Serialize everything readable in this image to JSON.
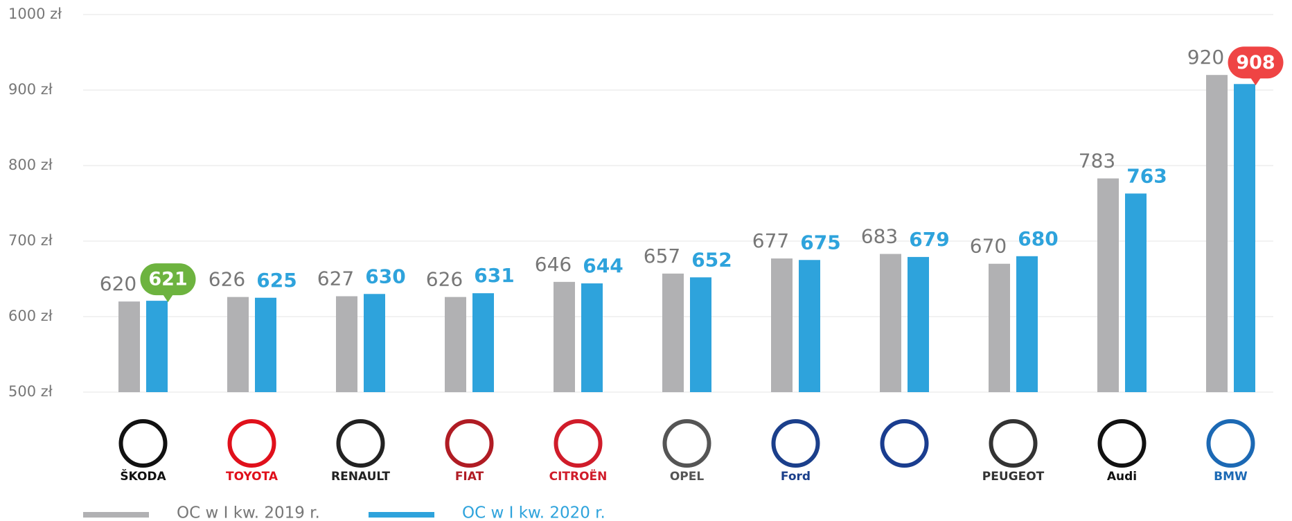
{
  "chart_data": {
    "type": "bar",
    "categories": [
      "ŠKODA",
      "TOYOTA",
      "RENAULT",
      "FIAT",
      "CITROËN",
      "OPEL",
      "Ford",
      null,
      "PEUGEOT",
      "Audi",
      "BMW"
    ],
    "category_colors": [
      "#111111",
      "#e0101b",
      "#222222",
      "#b01c24",
      "#d01c2a",
      "#555555",
      "#1b3f8b",
      "#1a3d8f",
      "#333333",
      "#111111",
      "#1c69b4"
    ],
    "series": [
      {
        "name": "OC w I kw. 2019 r.",
        "color": "#b1b1b3",
        "values": [
          620,
          626,
          627,
          626,
          646,
          657,
          677,
          683,
          670,
          783,
          920
        ]
      },
      {
        "name": "OC w I kw. 2020 r.",
        "color": "#2ea3dc",
        "values": [
          621,
          625,
          630,
          631,
          644,
          652,
          675,
          679,
          680,
          763,
          908
        ],
        "label_highlights": [
          {
            "index": 0,
            "color": "#6db33f"
          },
          {
            "index": 10,
            "color": "#ef4444"
          }
        ]
      }
    ],
    "ylim": [
      500,
      1000
    ],
    "yticks": [
      {
        "value": 500,
        "label": "500 zł"
      },
      {
        "value": 600,
        "label": "600 zł"
      },
      {
        "value": 700,
        "label": "700 zł"
      },
      {
        "value": 800,
        "label": "800 zł"
      },
      {
        "value": 900,
        "label": "900 zł"
      },
      {
        "value": 1000,
        "label": "1000 zł"
      }
    ],
    "grid": true
  }
}
